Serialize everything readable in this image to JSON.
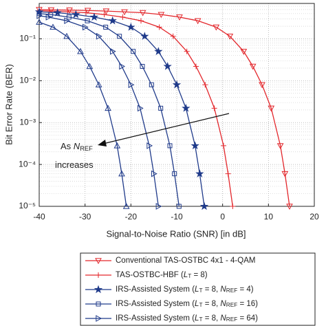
{
  "chart_data": {
    "type": "line",
    "xlabel": "Signal-to-Noise Ratio (SNR) [in dB]",
    "ylabel": "Bit Error Rate (BER)",
    "xlim": [
      -40,
      20
    ],
    "xticks": [
      -40,
      -30,
      -20,
      -10,
      0,
      10,
      20
    ],
    "ylim": [
      1e-05,
      0.7
    ],
    "yticks": [
      {
        "value": 1e-05,
        "label": "10⁻⁵"
      },
      {
        "value": 0.0001,
        "label": "10⁻⁴"
      },
      {
        "value": 0.001,
        "label": "10⁻³"
      },
      {
        "value": 0.01,
        "label": "10⁻²"
      },
      {
        "value": 0.1,
        "label": "10⁻¹"
      }
    ],
    "log_y": true,
    "grid": true,
    "legend": "bottom",
    "annotation": {
      "lines": [
        "As NREF",
        "increases"
      ]
    },
    "series": [
      {
        "name": "Conventional TAS-OSTBC 4x1 - 4-QAM",
        "color": "#e3262b",
        "marker": "triangle-down",
        "x": [
          -40,
          -37.4,
          -33.4,
          -29.4,
          -25.4,
          -21.4,
          -17.4,
          -13.4,
          -9.4,
          -5.4,
          -1.4,
          1.6,
          4.6,
          6.6,
          8.6,
          10.6,
          12.6,
          13.6,
          14.6
        ],
        "values": [
          0.5,
          0.49,
          0.485,
          0.475,
          0.46,
          0.44,
          0.42,
          0.38,
          0.33,
          0.27,
          0.19,
          0.115,
          0.05,
          0.022,
          0.008,
          0.0022,
          0.00028,
          6e-05,
          1e-05
        ]
      },
      {
        "name": "TAS-OSTBC-HBF (LT = 8)",
        "color": "#e3262b",
        "marker": "plus",
        "x": [
          -40,
          -37.8,
          -33.8,
          -29.8,
          -25.8,
          -21.8,
          -17.8,
          -13.8,
          -10.8,
          -7.8,
          -5.8,
          -3.8,
          -1.8,
          0.2,
          1.2,
          2.2
        ],
        "values": [
          0.47,
          0.46,
          0.44,
          0.42,
          0.38,
          0.33,
          0.27,
          0.19,
          0.115,
          0.05,
          0.022,
          0.008,
          0.0022,
          0.00028,
          6e-05,
          1e-05
        ]
      },
      {
        "name": "IRS-Assisted System (LT = 8, NREF = 4)",
        "color": "#1f3a8a",
        "marker": "star",
        "x": [
          -40,
          -36,
          -32,
          -28,
          -24,
          -20,
          -17,
          -14,
          -12,
          -10,
          -8,
          -6,
          -5,
          -4
        ],
        "values": [
          0.44,
          0.42,
          0.38,
          0.33,
          0.27,
          0.19,
          0.115,
          0.05,
          0.022,
          0.008,
          0.0022,
          0.00028,
          6e-05,
          1e-05
        ]
      },
      {
        "name": "IRS-Assisted System (LT = 8, NREF = 16)",
        "color": "#1f3a8a",
        "marker": "square",
        "x": [
          -40,
          -37.5,
          -33.5,
          -29.5,
          -25.5,
          -22.5,
          -19.5,
          -17.5,
          -15.5,
          -13.5,
          -11.5,
          -10.5,
          -9.5
        ],
        "values": [
          0.4,
          0.38,
          0.33,
          0.27,
          0.19,
          0.115,
          0.05,
          0.022,
          0.008,
          0.0022,
          0.00028,
          6e-05,
          1e-05
        ]
      },
      {
        "name": "IRS-Assisted System (LT = 8, NREF = 64)",
        "color": "#1f3a8a",
        "marker": "triangle-right",
        "x": [
          -40,
          -38,
          -34,
          -30,
          -27,
          -24,
          -22,
          -20,
          -18,
          -16,
          -15,
          -14
        ],
        "values": [
          0.355,
          0.33,
          0.27,
          0.19,
          0.115,
          0.05,
          0.022,
          0.008,
          0.0022,
          0.00028,
          6e-05,
          1e-05
        ]
      },
      {
        "color": "#1f3a8a",
        "marker": "triangle-up",
        "x": [
          -40,
          -37,
          -34,
          -31,
          -29,
          -27,
          -25,
          -23,
          -22,
          -21
        ],
        "values": [
          0.25,
          0.19,
          0.115,
          0.05,
          0.022,
          0.008,
          0.0022,
          0.00028,
          6e-05,
          1e-05
        ]
      }
    ]
  }
}
